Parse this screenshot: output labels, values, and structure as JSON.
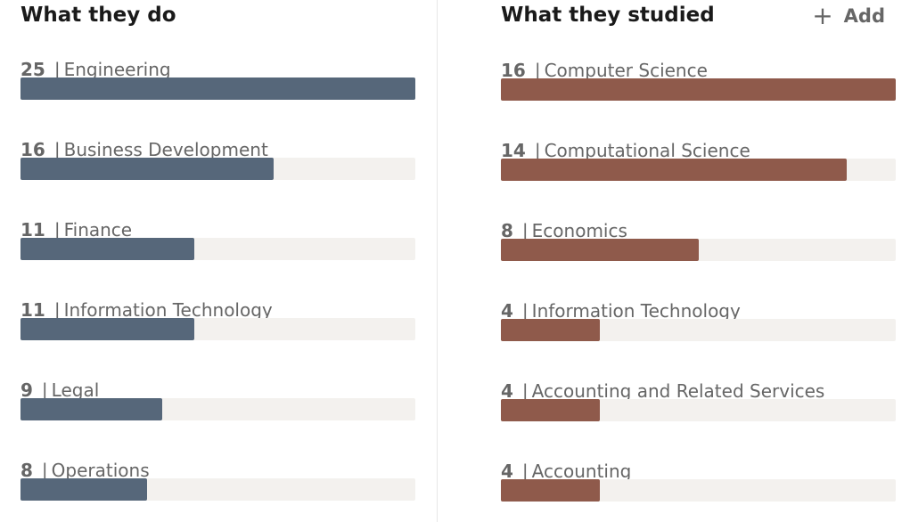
{
  "left": {
    "title": "What they do",
    "color": "#56677a",
    "items": [
      {
        "count": 25,
        "label": "Engineering"
      },
      {
        "count": 16,
        "label": "Business Development"
      },
      {
        "count": 11,
        "label": "Finance"
      },
      {
        "count": 11,
        "label": "Information Technology"
      },
      {
        "count": 9,
        "label": "Legal"
      },
      {
        "count": 8,
        "label": "Operations"
      }
    ]
  },
  "right": {
    "title": "What they studied",
    "add_label": "Add",
    "add_icon": "plus-icon",
    "color": "#8f5a4b",
    "items": [
      {
        "count": 16,
        "label": "Computer Science"
      },
      {
        "count": 14,
        "label": "Computational Science"
      },
      {
        "count": 8,
        "label": "Economics"
      },
      {
        "count": 4,
        "label": "Information Technology"
      },
      {
        "count": 4,
        "label": "Accounting and Related Services"
      },
      {
        "count": 4,
        "label": "Accounting"
      }
    ]
  }
}
